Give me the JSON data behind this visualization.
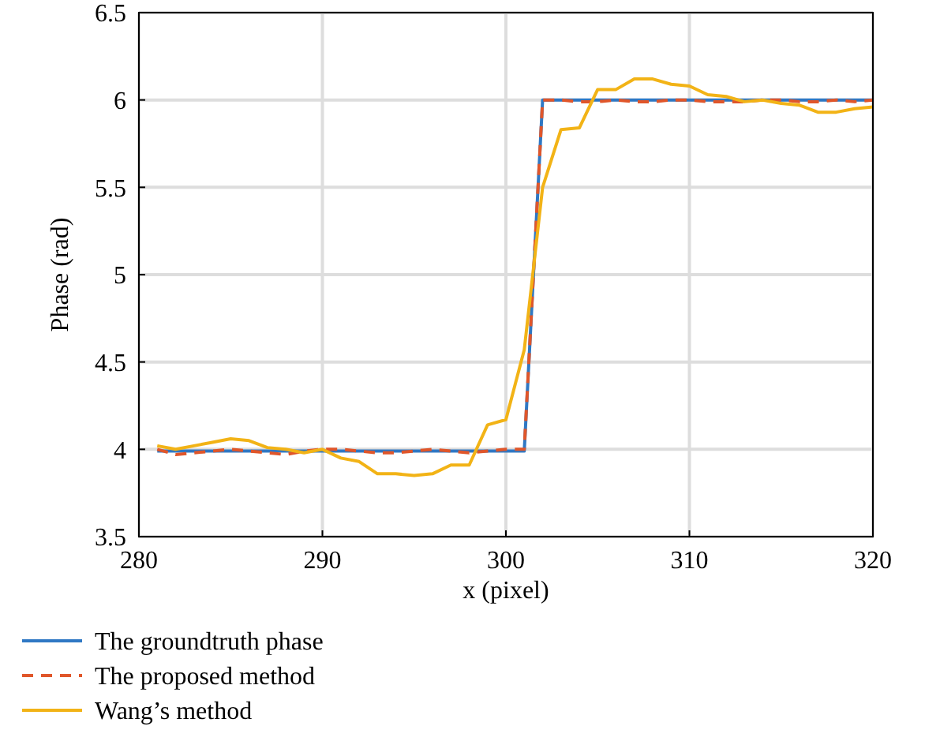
{
  "chart_data": {
    "type": "line",
    "xlabel": "x (pixel)",
    "ylabel": "Phase (rad)",
    "xlim": [
      280,
      320
    ],
    "xticks": [
      280,
      290,
      300,
      310,
      320
    ],
    "ylim": [
      3.5,
      6.5
    ],
    "yticks": [
      3.5,
      4,
      4.5,
      5,
      5.5,
      6,
      6.5
    ],
    "grid": true,
    "legend": "bottom",
    "x": [
      281,
      282,
      283,
      284,
      285,
      286,
      287,
      288,
      289,
      290,
      291,
      292,
      293,
      294,
      295,
      296,
      297,
      298,
      299,
      300,
      301,
      302,
      303,
      304,
      305,
      306,
      307,
      308,
      309,
      310,
      311,
      312,
      313,
      314,
      315,
      316,
      317,
      318,
      319,
      320
    ],
    "series": [
      {
        "name": "The groundtruth phase",
        "color": "#2f78c4",
        "line_style": "solid",
        "values": [
          3.99,
          3.99,
          3.99,
          3.99,
          3.99,
          3.99,
          3.99,
          3.99,
          3.99,
          3.99,
          3.99,
          3.99,
          3.99,
          3.99,
          3.99,
          3.99,
          3.99,
          3.99,
          3.99,
          3.99,
          3.99,
          6,
          6,
          6,
          6,
          6,
          6,
          6,
          6,
          6,
          6,
          6,
          6,
          6,
          6,
          6,
          6,
          6,
          6,
          6
        ]
      },
      {
        "name": "The proposed method",
        "color": "#e0562a",
        "line_style": "dashed",
        "values": [
          4.0,
          3.97,
          3.98,
          3.99,
          4.0,
          3.99,
          3.98,
          3.97,
          3.99,
          4.0,
          4.0,
          3.99,
          3.98,
          3.98,
          3.99,
          4.0,
          3.99,
          3.98,
          3.99,
          4.0,
          4.0,
          6,
          6.0,
          5.99,
          5.99,
          6.0,
          5.99,
          5.99,
          6.0,
          6.0,
          5.99,
          5.99,
          5.99,
          6.0,
          6.0,
          5.99,
          5.99,
          6.0,
          5.99,
          6.0
        ]
      },
      {
        "name": "Wang’s method",
        "color": "#f2b316",
        "line_style": "solid",
        "values": [
          4.02,
          4.0,
          4.02,
          4.04,
          4.06,
          4.05,
          4.01,
          4.0,
          3.98,
          4.0,
          3.95,
          3.93,
          3.86,
          3.86,
          3.85,
          3.86,
          3.91,
          3.91,
          4.14,
          4.17,
          4.57,
          5.5,
          5.83,
          5.84,
          6.06,
          6.06,
          6.12,
          6.12,
          6.09,
          6.08,
          6.03,
          6.02,
          5.99,
          6.0,
          5.98,
          5.97,
          5.93,
          5.93,
          5.95,
          5.96
        ]
      }
    ]
  }
}
